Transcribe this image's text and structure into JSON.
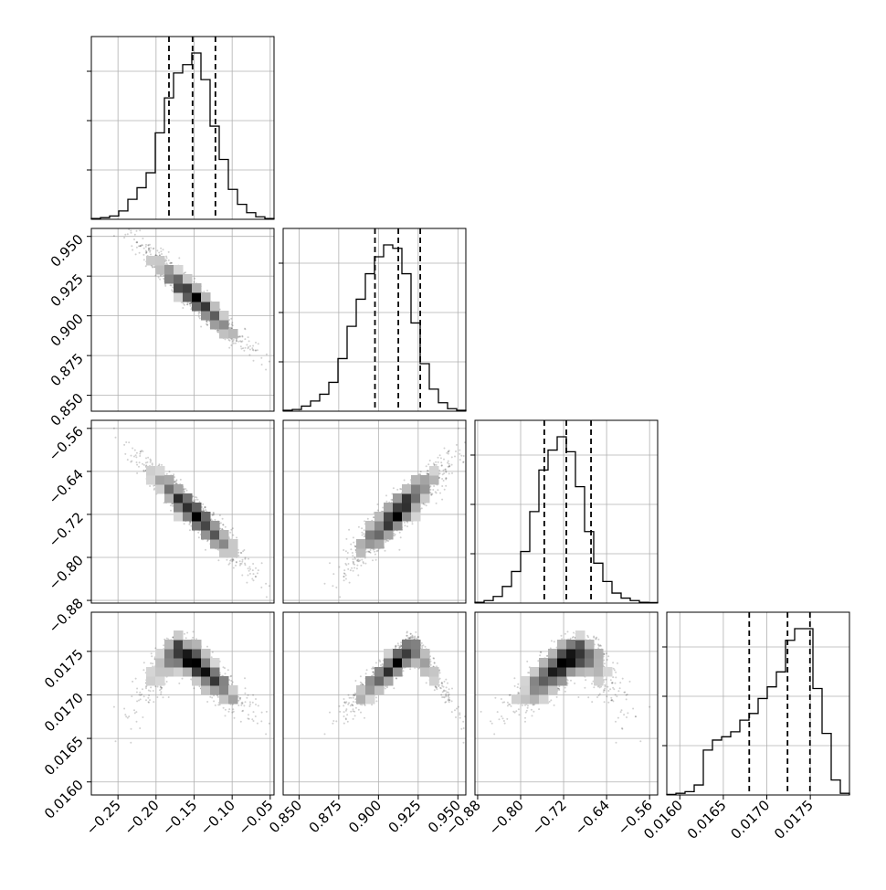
{
  "chart_data": {
    "type": "corner_plot",
    "grid": true,
    "parameters": [
      {
        "index": 0,
        "range": [
          -0.285,
          -0.045
        ],
        "ticks": [
          -0.25,
          -0.2,
          -0.15,
          -0.1,
          -0.05
        ],
        "tick_labels": [
          "−0.25",
          "−0.20",
          "−0.15",
          "−0.10",
          "−0.05"
        ],
        "quantiles": [
          -0.183,
          -0.152,
          -0.122
        ],
        "hist": [
          0.5,
          1,
          2,
          5,
          12,
          19,
          28,
          52,
          73,
          88,
          93,
          100,
          84,
          56,
          36,
          18,
          9,
          4,
          1.5,
          0.5
        ]
      },
      {
        "index": 1,
        "range": [
          0.84,
          0.955
        ],
        "ticks": [
          0.85,
          0.875,
          0.9,
          0.925,
          0.95
        ],
        "tick_labels": [
          "0.850",
          "0.875",
          "0.900",
          "0.925",
          "0.950"
        ],
        "quantiles": [
          0.8978,
          0.9125,
          0.9263
        ],
        "hist": [
          0.5,
          1,
          3,
          6,
          10,
          17,
          31,
          50,
          66,
          81,
          91,
          98,
          96,
          81,
          52,
          28,
          13,
          5,
          1.5,
          0.5
        ]
      },
      {
        "index": 2,
        "range": [
          -0.885,
          -0.545
        ],
        "ticks": [
          -0.88,
          -0.8,
          -0.72,
          -0.64,
          -0.56
        ],
        "tick_labels": [
          "−0.88",
          "−0.80",
          "−0.72",
          "−0.64",
          "−0.56"
        ],
        "quantiles": [
          -0.756,
          -0.715,
          -0.669
        ],
        "hist": [
          0.5,
          1.5,
          4,
          10,
          19,
          31,
          55,
          80,
          92,
          100,
          91,
          70,
          43,
          24,
          13,
          6,
          3,
          1.5,
          0.5,
          0.3
        ]
      },
      {
        "index": 3,
        "range": [
          0.01585,
          0.01795
        ],
        "ticks": [
          0.016,
          0.0165,
          0.017,
          0.0175
        ],
        "tick_labels": [
          "0.0160",
          "0.0165",
          "0.0170",
          "0.0175"
        ],
        "quantiles": [
          0.016798,
          0.017238,
          0.017496
        ],
        "hist": [
          0.3,
          1,
          2,
          6,
          27,
          33,
          35,
          38,
          45,
          49,
          58,
          65,
          74,
          93,
          100,
          100,
          64,
          37,
          9,
          1
        ]
      }
    ]
  }
}
